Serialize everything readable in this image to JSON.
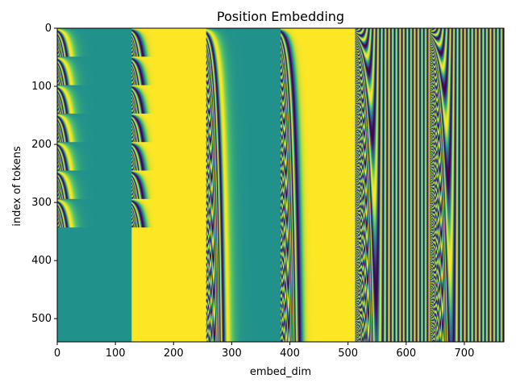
{
  "chart_data": {
    "type": "heatmap",
    "title": "Position Embedding",
    "xlabel": "embed_dim",
    "ylabel": "index of tokens",
    "xlim": [
      0,
      768
    ],
    "ylim": [
      540,
      0
    ],
    "x_ticks": [
      0,
      100,
      200,
      300,
      400,
      500,
      600,
      700
    ],
    "y_ticks": [
      0,
      100,
      200,
      300,
      400,
      500
    ],
    "grid": false,
    "colormap": [
      "#440154",
      "#3b528b",
      "#21918c",
      "#5ec962",
      "#fde725"
    ],
    "blocks": [
      {
        "dims": [
          0,
          128
        ],
        "pattern": "periodic sinusoid, period 49 tokens, rows 0-343; constant mid-value for rows 343-540"
      },
      {
        "dims": [
          128,
          256
        ],
        "pattern": "periodic sinusoid, period 49 tokens, rows 0-343; constant high value for rows 343-540"
      },
      {
        "dims": [
          256,
          384
        ],
        "pattern": "sinusoid increasing frequency with token index"
      },
      {
        "dims": [
          384,
          512
        ],
        "pattern": "sinusoid increasing frequency with token index"
      },
      {
        "dims": [
          512,
          640
        ],
        "pattern": "high-frequency sinusoid"
      },
      {
        "dims": [
          640,
          768
        ],
        "pattern": "high-frequency sinusoid"
      }
    ]
  }
}
